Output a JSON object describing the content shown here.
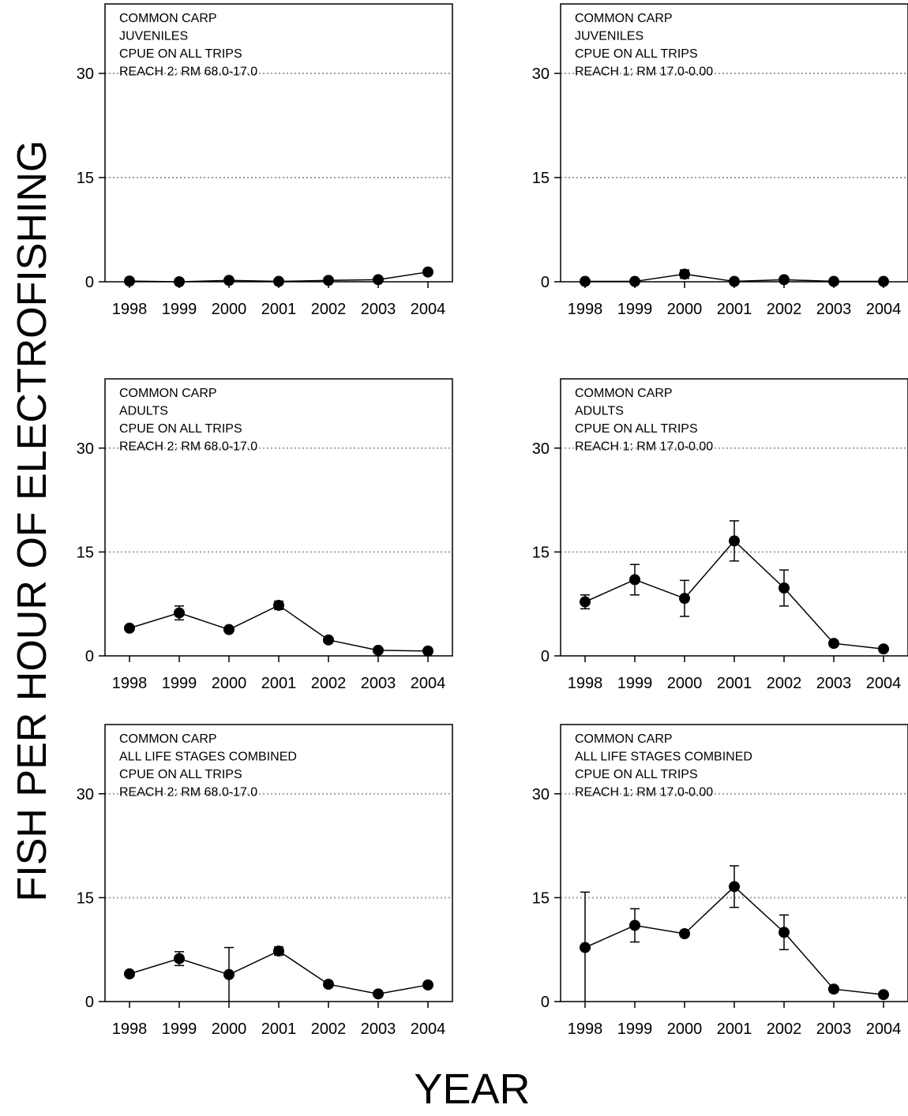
{
  "figure": {
    "ylabel": "FISH PER HOUR OF ELECTROFISHING",
    "xlabel": "YEAR"
  },
  "chart_data": [
    {
      "type": "line",
      "annotation": [
        "COMMON CARP",
        "JUVENILES",
        "CPUE ON ALL TRIPS",
        "REACH 2:  RM 68.0-17.0"
      ],
      "x": [
        1998,
        1999,
        2000,
        2001,
        2002,
        2003,
        2004
      ],
      "y": [
        0.1,
        0.0,
        0.2,
        0.05,
        0.2,
        0.3,
        1.4
      ],
      "error": [
        0.1,
        0.1,
        0.1,
        0.1,
        0.1,
        0.2,
        0.3
      ],
      "yticks": [
        0,
        15,
        30
      ],
      "ylim": [
        0,
        40
      ],
      "grid": "horizontal dotted at 15 and 30"
    },
    {
      "type": "line",
      "annotation": [
        "COMMON CARP",
        "JUVENILES",
        "CPUE ON ALL TRIPS",
        "REACH 1:  RM 17.0-0.00"
      ],
      "x": [
        1998,
        1999,
        2000,
        2001,
        2002,
        2003,
        2004
      ],
      "y": [
        0.05,
        0.05,
        1.1,
        0.05,
        0.3,
        0.05,
        0.05
      ],
      "error": [
        0.1,
        0.1,
        0.6,
        0.1,
        0.3,
        0.1,
        0.1
      ],
      "yticks": [
        0,
        15,
        30
      ],
      "ylim": [
        0,
        40
      ],
      "grid": "horizontal dotted at 15 and 30"
    },
    {
      "type": "line",
      "annotation": [
        "COMMON CARP",
        "ADULTS",
        "CPUE ON ALL TRIPS",
        "REACH 2:  RM 68.0-17.0"
      ],
      "x": [
        1998,
        1999,
        2000,
        2001,
        2002,
        2003,
        2004
      ],
      "y": [
        4.0,
        6.2,
        3.8,
        7.3,
        2.3,
        0.8,
        0.7
      ],
      "error": [
        0.3,
        1.0,
        0.3,
        0.6,
        0.3,
        0.2,
        0.3
      ],
      "yticks": [
        0,
        15,
        30
      ],
      "ylim": [
        0,
        40
      ],
      "grid": "horizontal dotted at 15 and 30"
    },
    {
      "type": "line",
      "annotation": [
        "COMMON CARP",
        "ADULTS",
        "CPUE ON ALL TRIPS",
        "REACH 1:  RM 17.0-0.00"
      ],
      "x": [
        1998,
        1999,
        2000,
        2001,
        2002,
        2003,
        2004
      ],
      "y": [
        7.8,
        11.0,
        8.3,
        16.6,
        9.8,
        1.8,
        1.0
      ],
      "error": [
        1.0,
        2.2,
        2.6,
        2.9,
        2.6,
        0.4,
        0.3
      ],
      "yticks": [
        0,
        15,
        30
      ],
      "ylim": [
        0,
        40
      ],
      "grid": "horizontal dotted at 15 and 30"
    },
    {
      "type": "line",
      "annotation": [
        "COMMON CARP",
        "ALL  LIFE STAGES COMBINED",
        "CPUE ON ALL TRIPS",
        "REACH 2:  RM 68.0-17.0"
      ],
      "x": [
        1998,
        1999,
        2000,
        2001,
        2002,
        2003,
        2004
      ],
      "y": [
        4.0,
        6.2,
        3.9,
        7.3,
        2.5,
        1.1,
        2.4
      ],
      "error": [
        0.3,
        1.0,
        3.9,
        0.6,
        0.3,
        0.2,
        0.3
      ],
      "yticks": [
        0,
        15,
        30
      ],
      "ylim": [
        0,
        40
      ],
      "grid": "horizontal dotted at 15 and 30"
    },
    {
      "type": "line",
      "annotation": [
        "COMMON CARP",
        "ALL LIFE STAGES COMBINED",
        "CPUE ON ALL TRIPS",
        "REACH 1: RM 17.0-0.00"
      ],
      "x": [
        1998,
        1999,
        2000,
        2001,
        2002,
        2003,
        2004
      ],
      "y": [
        7.8,
        11.0,
        9.8,
        16.6,
        10.0,
        1.8,
        1.0
      ],
      "error": [
        8.0,
        2.4,
        0.3,
        3.0,
        2.5,
        0.4,
        0.3
      ],
      "yticks": [
        0,
        15,
        30
      ],
      "ylim": [
        0,
        40
      ],
      "grid": "horizontal dotted at 15 and 30"
    }
  ]
}
